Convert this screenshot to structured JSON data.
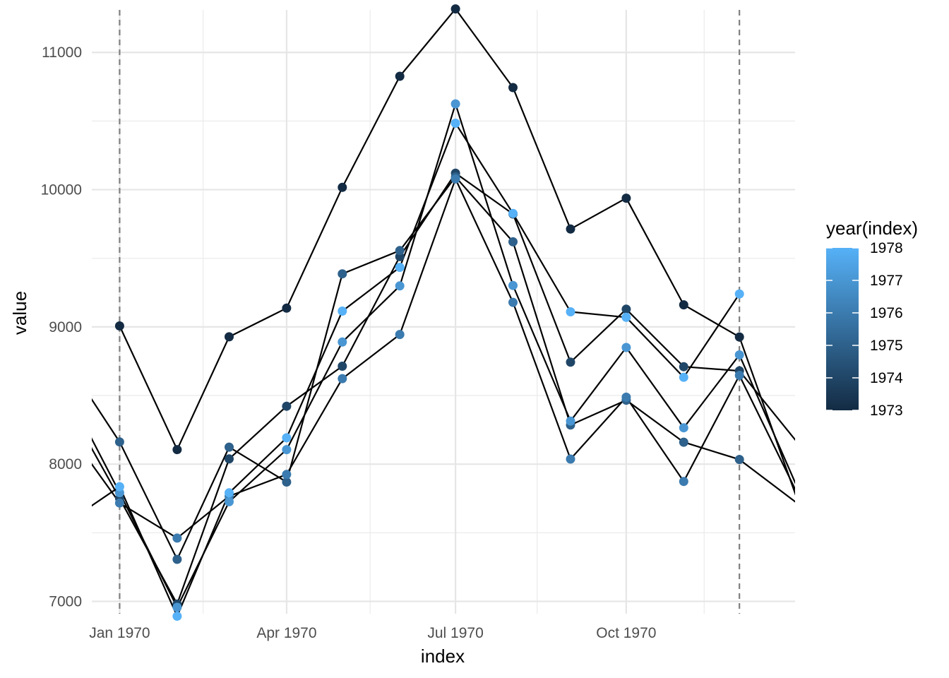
{
  "chart_data": {
    "type": "line",
    "xlabel": "index",
    "ylabel": "value",
    "x_axis": {
      "type": "date",
      "range": [
        "1969-12-17",
        "1970-12-31"
      ],
      "ticks": [
        {
          "date": "1970-01-01",
          "label": "Jan 1970"
        },
        {
          "date": "1970-04-01",
          "label": "Apr 1970"
        },
        {
          "date": "1970-07-01",
          "label": "Jul 1970"
        },
        {
          "date": "1970-10-01",
          "label": "Oct 1970"
        }
      ]
    },
    "y_axis": {
      "range": [
        6910,
        11310
      ],
      "ticks": [
        7000,
        8000,
        9000,
        10000,
        11000
      ]
    },
    "grid": true,
    "reference_lines": [
      {
        "orientation": "vertical",
        "date": "1970-01-01",
        "style": "dashed",
        "color": "#7f7f7f"
      },
      {
        "orientation": "vertical",
        "date": "1970-12-01",
        "style": "dashed",
        "color": "#7f7f7f"
      }
    ],
    "line_color": "#000000",
    "legend": {
      "title": "year(index)",
      "type": "colorbar",
      "position": "right",
      "min": 1973,
      "max": 1978,
      "labels": [
        1978,
        1977,
        1976,
        1975,
        1974,
        1973
      ],
      "color_low": "#132B43",
      "color_high": "#56B1F7"
    },
    "series": [
      {
        "year": 1973,
        "points": [
          {
            "x": "1970-01-01",
            "y": 9007
          },
          {
            "x": "1970-02-01",
            "y": 8106
          },
          {
            "x": "1970-03-01",
            "y": 8928
          },
          {
            "x": "1970-04-01",
            "y": 9137
          },
          {
            "x": "1970-05-01",
            "y": 10017
          },
          {
            "x": "1970-06-01",
            "y": 10826
          },
          {
            "x": "1970-07-01",
            "y": 11317
          },
          {
            "x": "1970-08-01",
            "y": 10744
          },
          {
            "x": "1970-09-01",
            "y": 9713
          },
          {
            "x": "1970-10-01",
            "y": 9938
          },
          {
            "x": "1970-11-01",
            "y": 9161
          },
          {
            "x": "1970-12-01",
            "y": 8927
          }
        ]
      },
      {
        "year": 1974,
        "points": [
          {
            "x": "1970-01-01",
            "y": 7750
          },
          {
            "x": "1970-02-01",
            "y": 6981
          },
          {
            "x": "1970-03-01",
            "y": 8038
          },
          {
            "x": "1970-04-01",
            "y": 8422
          },
          {
            "x": "1970-05-01",
            "y": 8714
          },
          {
            "x": "1970-06-01",
            "y": 9512
          },
          {
            "x": "1970-07-01",
            "y": 10120
          },
          {
            "x": "1970-08-01",
            "y": 9823
          },
          {
            "x": "1970-09-01",
            "y": 8743
          },
          {
            "x": "1970-10-01",
            "y": 9129
          },
          {
            "x": "1970-11-01",
            "y": 8710
          },
          {
            "x": "1970-12-01",
            "y": 8680
          }
        ]
      },
      {
        "year": 1975,
        "points": [
          {
            "x": "1970-01-01",
            "y": 8162
          },
          {
            "x": "1970-02-01",
            "y": 7306
          },
          {
            "x": "1970-03-01",
            "y": 8124
          },
          {
            "x": "1970-04-01",
            "y": 7870
          },
          {
            "x": "1970-05-01",
            "y": 9387
          },
          {
            "x": "1970-06-01",
            "y": 9556
          },
          {
            "x": "1970-07-01",
            "y": 10093
          },
          {
            "x": "1970-08-01",
            "y": 9620
          },
          {
            "x": "1970-09-01",
            "y": 8285
          },
          {
            "x": "1970-10-01",
            "y": 8466
          },
          {
            "x": "1970-11-01",
            "y": 8160
          },
          {
            "x": "1970-12-01",
            "y": 8034
          }
        ]
      },
      {
        "year": 1976,
        "points": [
          {
            "x": "1970-01-01",
            "y": 7717
          },
          {
            "x": "1970-02-01",
            "y": 7461
          },
          {
            "x": "1970-03-01",
            "y": 7767
          },
          {
            "x": "1970-04-01",
            "y": 7925
          },
          {
            "x": "1970-05-01",
            "y": 8623
          },
          {
            "x": "1970-06-01",
            "y": 8945
          },
          {
            "x": "1970-07-01",
            "y": 10078
          },
          {
            "x": "1970-08-01",
            "y": 9179
          },
          {
            "x": "1970-09-01",
            "y": 8037
          },
          {
            "x": "1970-10-01",
            "y": 8488
          },
          {
            "x": "1970-11-01",
            "y": 7874
          },
          {
            "x": "1970-12-01",
            "y": 8647
          }
        ]
      },
      {
        "year": 1977,
        "points": [
          {
            "x": "1970-01-01",
            "y": 7792
          },
          {
            "x": "1970-02-01",
            "y": 6957
          },
          {
            "x": "1970-03-01",
            "y": 7726
          },
          {
            "x": "1970-04-01",
            "y": 8106
          },
          {
            "x": "1970-05-01",
            "y": 8890
          },
          {
            "x": "1970-06-01",
            "y": 9299
          },
          {
            "x": "1970-07-01",
            "y": 10625
          },
          {
            "x": "1970-08-01",
            "y": 9302
          },
          {
            "x": "1970-09-01",
            "y": 8314
          },
          {
            "x": "1970-10-01",
            "y": 8850
          },
          {
            "x": "1970-11-01",
            "y": 8265
          },
          {
            "x": "1970-12-01",
            "y": 8796
          }
        ]
      },
      {
        "year": 1978,
        "points": [
          {
            "x": "1970-01-01",
            "y": 7836
          },
          {
            "x": "1970-02-01",
            "y": 6892
          },
          {
            "x": "1970-03-01",
            "y": 7791
          },
          {
            "x": "1970-04-01",
            "y": 8192
          },
          {
            "x": "1970-05-01",
            "y": 9115
          },
          {
            "x": "1970-06-01",
            "y": 9434
          },
          {
            "x": "1970-07-01",
            "y": 10484
          },
          {
            "x": "1970-08-01",
            "y": 9827
          },
          {
            "x": "1970-09-01",
            "y": 9110
          },
          {
            "x": "1970-10-01",
            "y": 9070
          },
          {
            "x": "1970-11-01",
            "y": 8633
          },
          {
            "x": "1970-12-01",
            "y": 9240
          }
        ]
      }
    ],
    "continuation_segments": [
      {
        "from": {
          "x": "1969-12-01",
          "y": 8300
        },
        "to": {
          "x": "1970-01-01",
          "y": 7717
        }
      },
      {
        "from": {
          "x": "1969-12-01",
          "y": 8800
        },
        "to": {
          "x": "1970-01-01",
          "y": 8162
        }
      },
      {
        "from": {
          "x": "1969-12-01",
          "y": 8500
        },
        "to": {
          "x": "1970-01-01",
          "y": 7750
        }
      },
      {
        "from": {
          "x": "1969-12-01",
          "y": 8600
        },
        "to": {
          "x": "1970-01-01",
          "y": 7792
        }
      },
      {
        "from": {
          "x": "1969-12-01",
          "y": 7550
        },
        "to": {
          "x": "1970-01-01",
          "y": 7836
        }
      },
      {
        "from": {
          "x": "1970-12-01",
          "y": 8927
        },
        "to": {
          "x": "1971-01-01",
          "y": 7750
        }
      },
      {
        "from": {
          "x": "1970-12-01",
          "y": 8680
        },
        "to": {
          "x": "1971-01-01",
          "y": 8162
        }
      },
      {
        "from": {
          "x": "1970-12-01",
          "y": 8034
        },
        "to": {
          "x": "1971-01-01",
          "y": 7717
        }
      },
      {
        "from": {
          "x": "1970-12-01",
          "y": 8647
        },
        "to": {
          "x": "1971-01-01",
          "y": 7792
        }
      },
      {
        "from": {
          "x": "1970-12-01",
          "y": 8796
        },
        "to": {
          "x": "1971-01-01",
          "y": 7836
        }
      }
    ]
  }
}
